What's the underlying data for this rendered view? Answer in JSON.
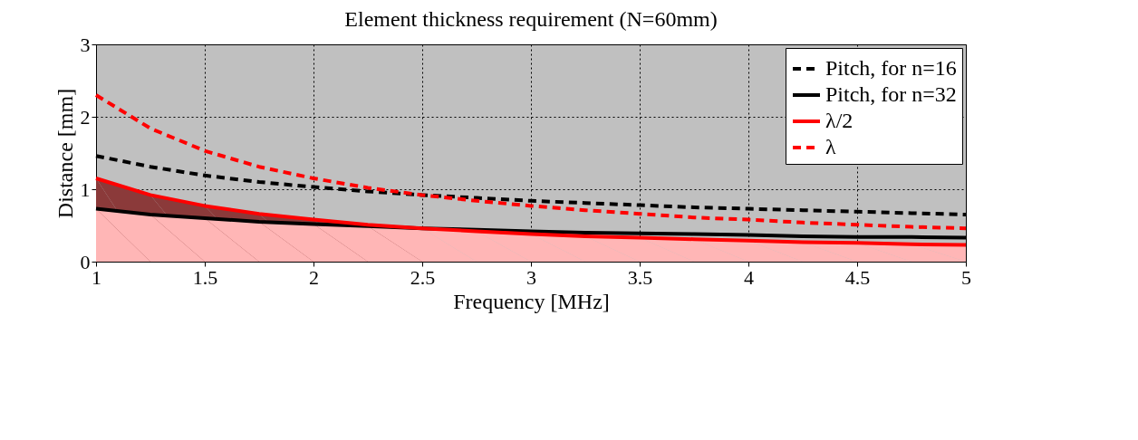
{
  "chart_data": {
    "type": "line",
    "title": "Element thickness requirement (N=60mm)",
    "xlabel": "Frequency [MHz]",
    "ylabel": "Distance [mm]",
    "x": [
      1,
      1.25,
      1.5,
      1.75,
      2,
      2.25,
      2.5,
      2.75,
      3,
      3.25,
      3.5,
      3.75,
      4,
      4.25,
      4.5,
      4.75,
      5
    ],
    "series": [
      {
        "type": "area",
        "color": "#8b3a3a",
        "values": [
          1.15,
          0.92,
          0.77,
          0.66,
          0.58,
          0.51,
          0.46,
          null,
          null,
          null,
          null,
          null,
          null,
          null,
          null,
          null,
          null
        ]
      },
      {
        "type": "area",
        "color": "#ffb6b6",
        "values": [
          0.73,
          0.65,
          0.6,
          0.55,
          0.52,
          0.49,
          0.46,
          0.42,
          0.38,
          0.35,
          0.33,
          0.31,
          0.29,
          0.27,
          0.26,
          0.24,
          0.23
        ]
      },
      {
        "name": "Pitch, for n=16",
        "color": "#000000",
        "line_style": "dashed",
        "values": [
          1.46,
          1.31,
          1.19,
          1.1,
          1.03,
          0.97,
          0.92,
          0.88,
          0.84,
          0.81,
          0.78,
          0.75,
          0.73,
          0.71,
          0.69,
          0.67,
          0.65
        ]
      },
      {
        "name": "Pitch, for n=32",
        "color": "#000000",
        "line_style": "solid",
        "values": [
          0.73,
          0.65,
          0.6,
          0.55,
          0.52,
          0.49,
          0.46,
          0.44,
          0.42,
          0.4,
          0.39,
          0.38,
          0.37,
          0.35,
          0.34,
          0.34,
          0.33
        ]
      },
      {
        "name": "λ/2",
        "color": "#ff0000",
        "line_style": "solid",
        "values": [
          1.15,
          0.92,
          0.77,
          0.66,
          0.58,
          0.51,
          0.46,
          0.42,
          0.38,
          0.35,
          0.33,
          0.31,
          0.29,
          0.27,
          0.26,
          0.24,
          0.23
        ]
      },
      {
        "name": "λ",
        "color": "#ff0000",
        "line_style": "dashed",
        "values": [
          2.3,
          1.84,
          1.53,
          1.31,
          1.15,
          1.02,
          0.92,
          0.84,
          0.77,
          0.71,
          0.66,
          0.61,
          0.58,
          0.54,
          0.51,
          0.48,
          0.46
        ]
      }
    ],
    "xlim": [
      1,
      5
    ],
    "xticks": [
      1,
      1.5,
      2,
      2.5,
      3,
      3.5,
      4,
      4.5,
      5
    ],
    "ylim": [
      0,
      3
    ],
    "yticks": [
      0,
      1,
      2,
      3
    ],
    "grid": true,
    "legend": "top right"
  }
}
